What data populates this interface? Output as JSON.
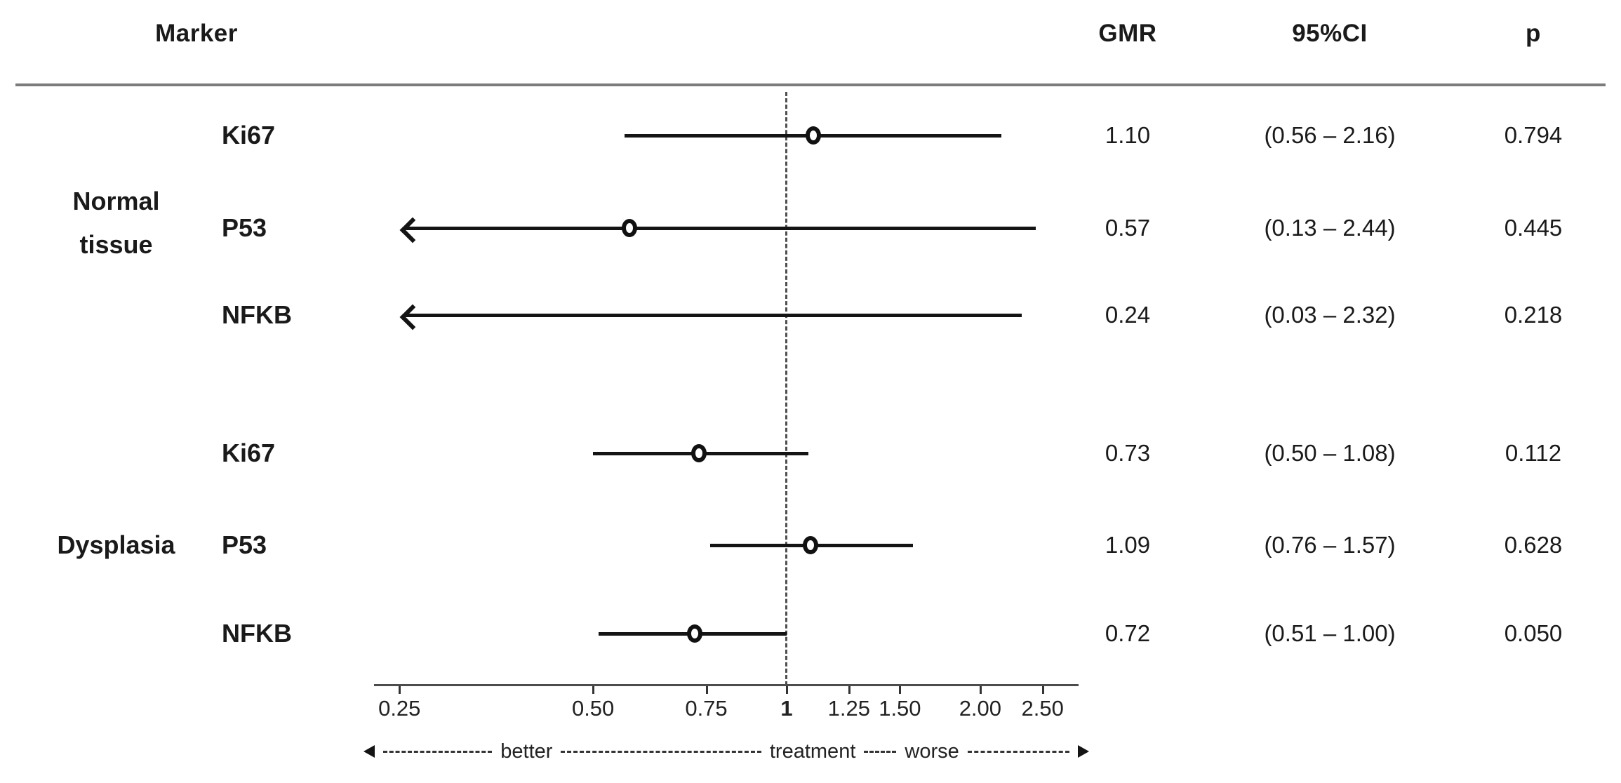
{
  "table": {
    "headers": {
      "marker": "Marker",
      "gmr": "GMR",
      "ci": "95%CI",
      "p": "p"
    }
  },
  "groups": [
    {
      "name": "Normal tissue",
      "lines": [
        "Normal",
        "tissue"
      ]
    },
    {
      "name": "Dysplasia",
      "lines": [
        "Dysplasia"
      ]
    }
  ],
  "chart_data": {
    "type": "scatter",
    "subtype": "forest-plot",
    "x_scale": "log",
    "x_axis_ticks": [
      "0.25",
      "0.50",
      "0.75",
      "1",
      "1.25",
      "1.50",
      "2.00",
      "2.50"
    ],
    "x_axis_tick_values": [
      0.25,
      0.5,
      0.75,
      1,
      1.25,
      1.5,
      2.0,
      2.5
    ],
    "x_range": [
      0.23,
      2.8
    ],
    "reference_line_value": 1,
    "grid": false,
    "columns": [
      "GMR",
      "95%CI",
      "p"
    ],
    "axis_annotation": {
      "left_word": "better",
      "center_word": "treatment",
      "right_word": "worse"
    },
    "rows": [
      {
        "group": "Normal tissue",
        "marker": "Ki67",
        "gmr": 1.1,
        "ci_low": 0.56,
        "ci_high": 2.16,
        "p": 0.794,
        "gmr_text": "1.10",
        "ci_text": "(0.56 – 2.16)",
        "p_text": "0.794",
        "arrow_left": false
      },
      {
        "group": "Normal tissue",
        "marker": "P53",
        "gmr": 0.57,
        "ci_low": 0.13,
        "ci_high": 2.44,
        "p": 0.445,
        "gmr_text": "0.57",
        "ci_text": "(0.13 – 2.44)",
        "p_text": "0.445",
        "arrow_left": true
      },
      {
        "group": "Normal tissue",
        "marker": "NFKB",
        "gmr": 0.24,
        "ci_low": 0.03,
        "ci_high": 2.32,
        "p": 0.218,
        "gmr_text": "0.24",
        "ci_text": "(0.03 – 2.32)",
        "p_text": "0.218",
        "arrow_left": true
      },
      {
        "group": "Dysplasia",
        "marker": "Ki67",
        "gmr": 0.73,
        "ci_low": 0.5,
        "ci_high": 1.08,
        "p": 0.112,
        "gmr_text": "0.73",
        "ci_text": "(0.50 – 1.08)",
        "p_text": "0.112",
        "arrow_left": false
      },
      {
        "group": "Dysplasia",
        "marker": "P53",
        "gmr": 1.09,
        "ci_low": 0.76,
        "ci_high": 1.57,
        "p": 0.628,
        "gmr_text": "1.09",
        "ci_text": "(0.76 – 1.57)",
        "p_text": "0.628",
        "arrow_left": false
      },
      {
        "group": "Dysplasia",
        "marker": "NFKB",
        "gmr": 0.72,
        "ci_low": 0.51,
        "ci_high": 1.0,
        "p": 0.05,
        "gmr_text": "0.72",
        "ci_text": "(0.51 – 1.00)",
        "p_text": "0.050",
        "arrow_left": false
      }
    ]
  }
}
